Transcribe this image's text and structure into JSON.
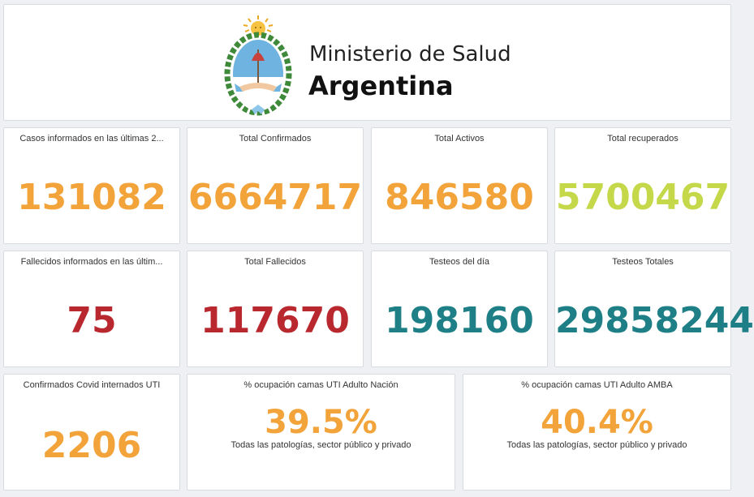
{
  "header": {
    "line1": "Ministerio de Salud",
    "line2": "Argentina",
    "logo_icon": "argentina-coat-of-arms-icon"
  },
  "colors": {
    "orange": "#f2a33a",
    "lime": "#c4d84a",
    "red": "#b8282e",
    "teal": "#1e7f86"
  },
  "stats": [
    {
      "title": "Casos informados en las últimas 2...",
      "value": "131082",
      "color": "#f2a33a"
    },
    {
      "title": "Total Confirmados",
      "value": "6664717",
      "color": "#f2a33a"
    },
    {
      "title": "Total Activos",
      "value": "846580",
      "color": "#f2a33a"
    },
    {
      "title": "Total recuperados",
      "value": "5700467",
      "color": "#c4d84a"
    },
    {
      "title": "Fallecidos informados en las últim...",
      "value": "75",
      "color": "#b8282e"
    },
    {
      "title": "Total Fallecidos",
      "value": "117670",
      "color": "#b8282e"
    },
    {
      "title": "Testeos del día",
      "value": "198160",
      "color": "#1e7f86"
    },
    {
      "title": "Testeos Totales",
      "value": "29858244",
      "color": "#1e7f86"
    },
    {
      "title": "Confirmados Covid internados UTI",
      "value": "2206",
      "color": "#f2a33a"
    }
  ],
  "occupancy": [
    {
      "title": "% ocupación camas UTI Adulto Nación",
      "value": "39.5%",
      "subtitle": "Todas las patologías, sector público y privado",
      "color": "#f2a33a"
    },
    {
      "title": "% ocupación camas UTI Adulto AMBA",
      "value": "40.4%",
      "subtitle": "Todas las patologías, sector público y privado",
      "color": "#f2a33a"
    }
  ]
}
